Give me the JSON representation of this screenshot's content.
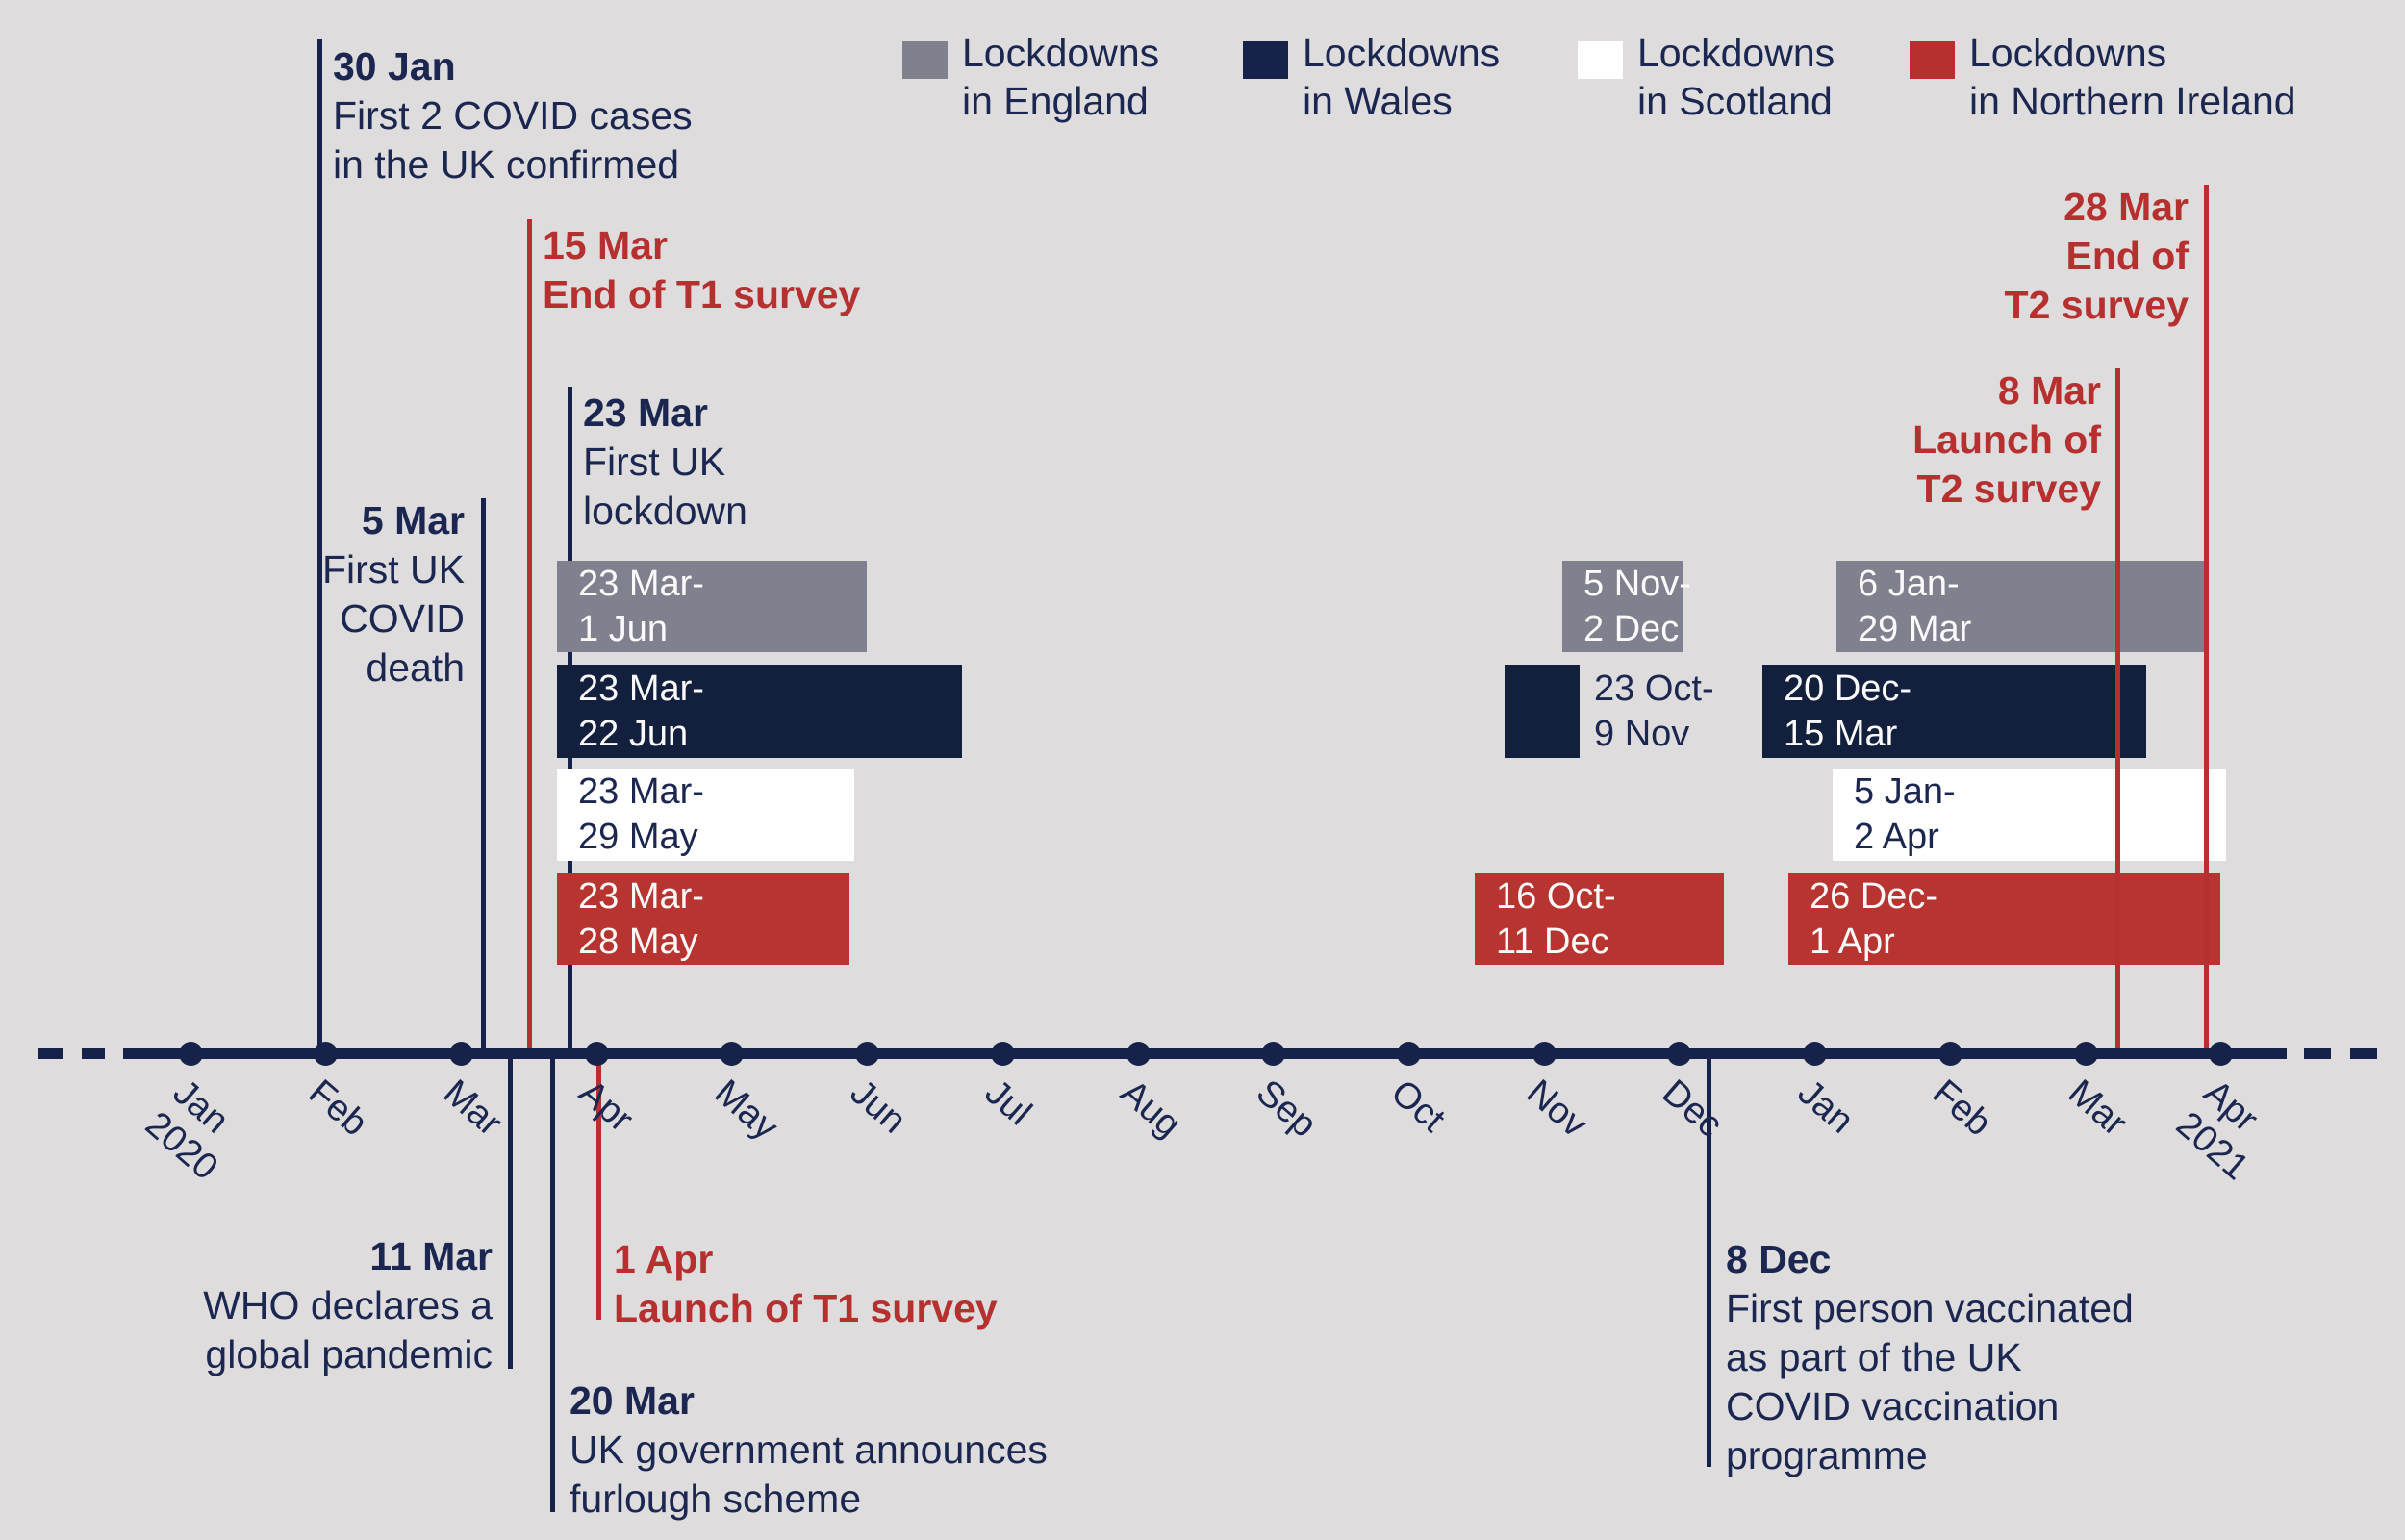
{
  "colors": {
    "background": "#dedcdd",
    "navy": "#16224a",
    "navy_text": "#1b2750",
    "red": "#b5302e",
    "gray": "#80808f",
    "white": "#ffffff",
    "bar_text_light": "#fafafa"
  },
  "legend": {
    "items": [
      {
        "id": "england",
        "swatch": "gray",
        "lines": [
          "Lockdowns",
          "in England"
        ]
      },
      {
        "id": "wales",
        "swatch": "navy",
        "lines": [
          "Lockdowns",
          "in Wales"
        ]
      },
      {
        "id": "scotland",
        "swatch": "white",
        "lines": [
          "Lockdowns",
          "in Scotland"
        ]
      },
      {
        "id": "northern-ireland",
        "swatch": "red",
        "lines": [
          "Lockdowns",
          "in Northern Ireland"
        ]
      }
    ]
  },
  "axis": {
    "months": [
      {
        "label": [
          "Jan",
          "2020"
        ]
      },
      {
        "label": [
          "Feb"
        ]
      },
      {
        "label": [
          "Mar"
        ]
      },
      {
        "label": [
          "Apr"
        ]
      },
      {
        "label": [
          "May"
        ]
      },
      {
        "label": [
          "Jun"
        ]
      },
      {
        "label": [
          "Jul"
        ]
      },
      {
        "label": [
          "Aug"
        ]
      },
      {
        "label": [
          "Sep"
        ]
      },
      {
        "label": [
          "Oct"
        ]
      },
      {
        "label": [
          "Nov"
        ]
      },
      {
        "label": [
          "Dec"
        ]
      },
      {
        "label": [
          "Jan"
        ]
      },
      {
        "label": [
          "Feb"
        ]
      },
      {
        "label": [
          "Mar"
        ]
      },
      {
        "label": [
          "Apr",
          "2021"
        ]
      }
    ]
  },
  "events": [
    {
      "id": "first-cases",
      "date": "30 Jan",
      "lines": [
        "First 2 COVID cases",
        "in the UK confirmed"
      ],
      "theme": "navy"
    },
    {
      "id": "first-death",
      "date": "5 Mar",
      "lines": [
        "First UK",
        "COVID",
        "death"
      ],
      "theme": "navy"
    },
    {
      "id": "t1-end",
      "date": "15 Mar",
      "lines": [
        "End of T1 survey"
      ],
      "theme": "red"
    },
    {
      "id": "first-lockdown",
      "date": "23 Mar",
      "lines": [
        "First UK",
        "lockdown"
      ],
      "theme": "navy"
    },
    {
      "id": "who-pandemic",
      "date": "11 Mar",
      "lines": [
        "WHO declares a",
        "global pandemic"
      ],
      "theme": "navy"
    },
    {
      "id": "furlough",
      "date": "20 Mar",
      "lines": [
        "UK government announces",
        "furlough scheme"
      ],
      "theme": "navy"
    },
    {
      "id": "t1-launch",
      "date": "1 Apr",
      "lines": [
        "Launch of T1 survey"
      ],
      "theme": "red"
    },
    {
      "id": "vaccination",
      "date": "8 Dec",
      "lines": [
        "First person vaccinated",
        "as part of the UK",
        "COVID vaccination",
        "programme"
      ],
      "theme": "navy"
    },
    {
      "id": "t2-launch",
      "date": "8 Mar",
      "lines": [
        "Launch of",
        "T2 survey"
      ],
      "theme": "red"
    },
    {
      "id": "t2-end",
      "date": "28 Mar",
      "lines": [
        "End of",
        "T2 survey"
      ],
      "theme": "red"
    }
  ],
  "lockdowns": [
    {
      "nation": "England",
      "swatch": "gray",
      "bars": [
        {
          "label": [
            "23 Mar-",
            "1 Jun"
          ],
          "start": {
            "m": 2,
            "d": 23
          },
          "end": {
            "m": 5,
            "d": 1
          },
          "label_position": "inside"
        },
        {
          "label": [
            "5 Nov-",
            "2 Dec"
          ],
          "start": {
            "m": 10,
            "d": 5
          },
          "end": {
            "m": 11,
            "d": 2
          },
          "label_position": "inside"
        },
        {
          "label": [
            "6 Jan-",
            "29 Mar"
          ],
          "start": {
            "m": 12,
            "d": 6
          },
          "end": {
            "m": 14,
            "d": 29
          },
          "label_position": "inside"
        }
      ]
    },
    {
      "nation": "Wales",
      "swatch": "navy",
      "bars": [
        {
          "label": [
            "23 Mar-",
            "22 Jun"
          ],
          "start": {
            "m": 2,
            "d": 23
          },
          "end": {
            "m": 5,
            "d": 22
          },
          "label_position": "inside"
        },
        {
          "label": [
            "23 Oct-",
            "9 Nov"
          ],
          "start": {
            "m": 9,
            "d": 23
          },
          "end": {
            "m": 10,
            "d": 9
          },
          "label_position": "outside-right"
        },
        {
          "label": [
            "20 Dec-",
            "15 Mar"
          ],
          "start": {
            "m": 11,
            "d": 20
          },
          "end": {
            "m": 14,
            "d": 15
          },
          "label_position": "inside"
        }
      ]
    },
    {
      "nation": "Scotland",
      "swatch": "white",
      "bars": [
        {
          "label": [
            "23 Mar-",
            "29 May"
          ],
          "start": {
            "m": 2,
            "d": 23
          },
          "end": {
            "m": 4,
            "d": 29
          },
          "label_position": "inside"
        },
        {
          "label": [
            "5 Jan-",
            "2 Apr"
          ],
          "start": {
            "m": 12,
            "d": 5
          },
          "end": {
            "m": 15,
            "d": 2
          },
          "label_position": "inside"
        }
      ]
    },
    {
      "nation": "Northern Ireland",
      "swatch": "red",
      "bars": [
        {
          "label": [
            "23 Mar-",
            "28 May"
          ],
          "start": {
            "m": 2,
            "d": 23
          },
          "end": {
            "m": 4,
            "d": 28
          },
          "label_position": "inside"
        },
        {
          "label": [
            "16 Oct-",
            "11 Dec"
          ],
          "start": {
            "m": 9,
            "d": 16
          },
          "end": {
            "m": 11,
            "d": 11
          },
          "label_position": "inside"
        },
        {
          "label": [
            "26 Dec-",
            "1 Apr"
          ],
          "start": {
            "m": 11,
            "d": 26
          },
          "end": {
            "m": 15,
            "d": 1
          },
          "label_position": "inside"
        }
      ]
    }
  ]
}
